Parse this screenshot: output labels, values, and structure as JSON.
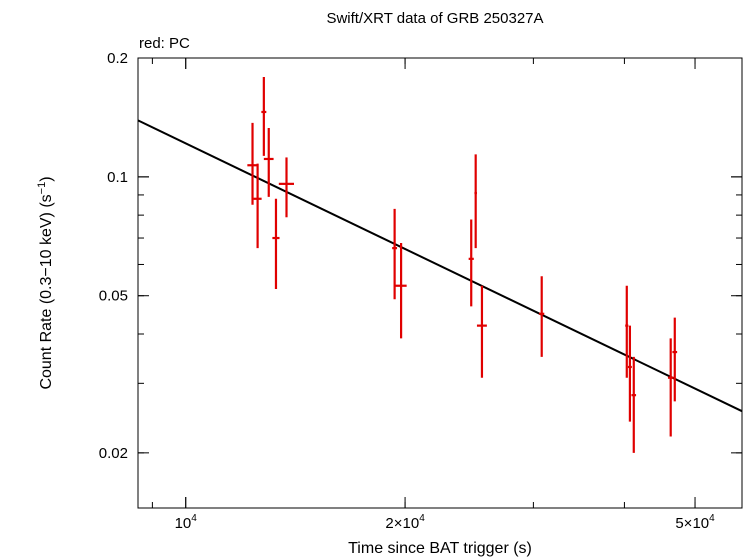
{
  "chart_data": {
    "type": "scatter",
    "title": "Swift/XRT data of GRB 250327A",
    "legend_note": "red: PC",
    "xlabel": "Time since BAT trigger (s)",
    "ylabel": "Count Rate (0.3−10 keV) (s",
    "ylabel_sup": "−1",
    "ylabel_close": ")",
    "x_scale": "log",
    "y_scale": "log",
    "xlim": [
      8600,
      58000
    ],
    "ylim": [
      0.0145,
      0.2
    ],
    "x_ticks": [
      {
        "value": 10000,
        "mantissa": "",
        "exp": "4"
      },
      {
        "value": 20000,
        "mantissa": "2×",
        "exp": "4"
      },
      {
        "value": 50000,
        "mantissa": "5×",
        "exp": "4"
      }
    ],
    "y_ticks": [
      {
        "value": 0.02,
        "label": "0.02"
      },
      {
        "value": 0.05,
        "label": "0.05"
      },
      {
        "value": 0.1,
        "label": "0.1"
      },
      {
        "value": 0.2,
        "label": "0.2"
      }
    ],
    "grid": false,
    "series": [
      {
        "color": "#e00000",
        "points": [
          {
            "x": 12350,
            "xerr": [
              200,
              200
            ],
            "y": 0.107,
            "yerr": [
              0.022,
              0.03
            ]
          },
          {
            "x": 12550,
            "xerr": [
              160,
              160
            ],
            "y": 0.088,
            "yerr": [
              0.022,
              0.02
            ]
          },
          {
            "x": 12800,
            "xerr": [
              100,
              100
            ],
            "y": 0.146,
            "yerr": [
              0.033,
              0.033
            ]
          },
          {
            "x": 13000,
            "xerr": [
              200,
              200
            ],
            "y": 0.111,
            "yerr": [
              0.022,
              0.022
            ]
          },
          {
            "x": 13300,
            "xerr": [
              150,
              150
            ],
            "y": 0.07,
            "yerr": [
              0.018,
              0.018
            ]
          },
          {
            "x": 13750,
            "xerr": [
              330,
              330
            ],
            "y": 0.096,
            "yerr": [
              0.017,
              0.016
            ]
          },
          {
            "x": 19350,
            "xerr": [
              150,
              150
            ],
            "y": 0.066,
            "yerr": [
              0.017,
              0.017
            ]
          },
          {
            "x": 19750,
            "xerr": [
              350,
              350
            ],
            "y": 0.053,
            "yerr": [
              0.014,
              0.015
            ]
          },
          {
            "x": 24650,
            "xerr": [
              200,
              200
            ],
            "y": 0.062,
            "yerr": [
              0.015,
              0.016
            ]
          },
          {
            "x": 25000,
            "xerr": [
              100,
              100
            ],
            "y": 0.091,
            "yerr": [
              0.025,
              0.023
            ]
          },
          {
            "x": 25500,
            "xerr": [
              400,
              400
            ],
            "y": 0.042,
            "yerr": [
              0.011,
              0.011
            ]
          },
          {
            "x": 30800,
            "xerr": [
              250,
              250
            ],
            "y": 0.045,
            "yerr": [
              0.01,
              0.011
            ]
          },
          {
            "x": 40300,
            "xerr": [
              200,
              200
            ],
            "y": 0.042,
            "yerr": [
              0.011,
              0.011
            ]
          },
          {
            "x": 40700,
            "xerr": [
              250,
              250
            ],
            "y": 0.033,
            "yerr": [
              0.009,
              0.009
            ]
          },
          {
            "x": 41200,
            "xerr": [
              300,
              300
            ],
            "y": 0.028,
            "yerr": [
              0.008,
              0.007
            ]
          },
          {
            "x": 46300,
            "xerr": [
              400,
              400
            ],
            "y": 0.031,
            "yerr": [
              0.009,
              0.008
            ]
          },
          {
            "x": 46900,
            "xerr": [
              350,
              350
            ],
            "y": 0.036,
            "yerr": [
              0.009,
              0.008
            ]
          }
        ]
      }
    ],
    "fit_line": {
      "color": "#000000",
      "points": [
        [
          8600,
          0.139
        ],
        [
          58000,
          0.0255
        ]
      ]
    }
  }
}
